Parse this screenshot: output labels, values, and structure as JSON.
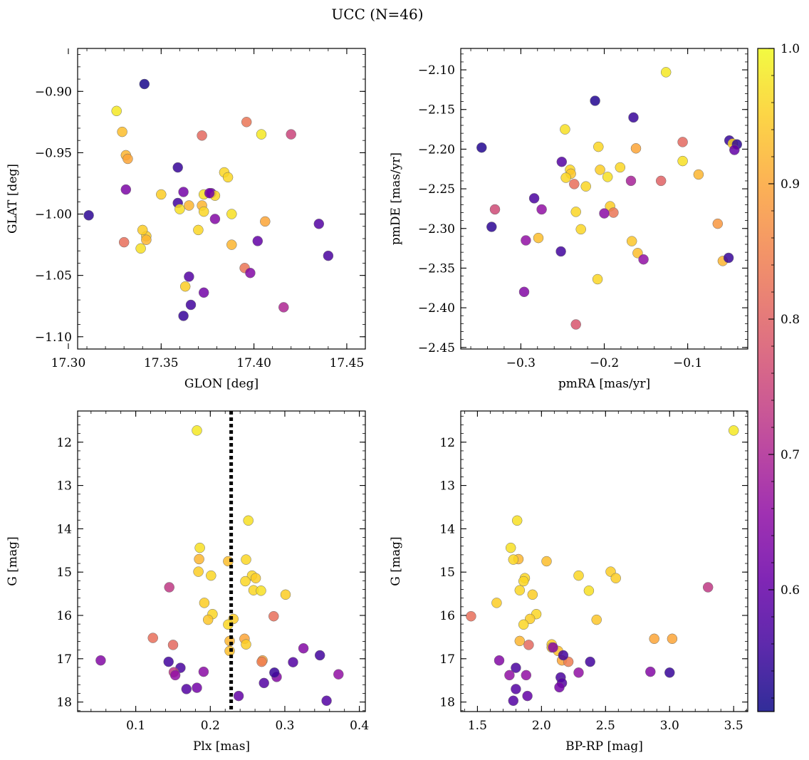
{
  "figure": {
    "title": "UCC (N=46)"
  },
  "colorbar": {
    "range": [
      0.51,
      1.0
    ],
    "ticks": [
      0.6,
      0.7,
      0.8,
      0.9,
      1.0
    ],
    "tick_labels": [
      "0.6",
      "0.7",
      "0.8",
      "0.9",
      "1.0"
    ],
    "colormap": "plasma"
  },
  "chart_data": [
    {
      "type": "scatter",
      "xlabel": "GLON [deg]",
      "ylabel": "GLAT [deg]",
      "xlim": [
        17.305,
        17.46
      ],
      "ylim": [
        -1.11,
        -0.865
      ],
      "xticks": [
        17.3,
        17.35,
        17.4,
        17.45
      ],
      "xtick_labels": [
        "17.30",
        "17.35",
        "17.40",
        "17.45"
      ],
      "yticks": [
        -0.9,
        -0.95,
        -1.0,
        -1.05,
        -1.1
      ],
      "ytick_labels": [
        "−0.90",
        "−0.95",
        "−1.00",
        "−1.05",
        "−1.10"
      ],
      "points": [
        [
          17.341,
          -0.894,
          0.52
        ],
        [
          17.326,
          -0.916,
          0.98
        ],
        [
          17.329,
          -0.933,
          0.93
        ],
        [
          17.331,
          -0.952,
          0.92
        ],
        [
          17.332,
          -0.955,
          0.9
        ],
        [
          17.331,
          -0.98,
          0.63
        ],
        [
          17.311,
          -1.001,
          0.54
        ],
        [
          17.33,
          -1.023,
          0.82
        ],
        [
          17.339,
          -1.028,
          0.97
        ],
        [
          17.342,
          -1.018,
          0.95
        ],
        [
          17.342,
          -1.021,
          0.92
        ],
        [
          17.34,
          -1.013,
          0.95
        ],
        [
          17.35,
          -0.984,
          0.95
        ],
        [
          17.359,
          -0.962,
          0.55
        ],
        [
          17.359,
          -0.991,
          0.56
        ],
        [
          17.36,
          -0.996,
          0.97
        ],
        [
          17.362,
          -0.982,
          0.62
        ],
        [
          17.365,
          -0.993,
          0.92
        ],
        [
          17.363,
          -1.059,
          0.95
        ],
        [
          17.365,
          -1.051,
          0.58
        ],
        [
          17.366,
          -1.074,
          0.56
        ],
        [
          17.362,
          -1.083,
          0.55
        ],
        [
          17.37,
          -1.013,
          0.96
        ],
        [
          17.372,
          -0.993,
          0.92
        ],
        [
          17.373,
          -0.998,
          0.96
        ],
        [
          17.373,
          -0.984,
          0.97
        ],
        [
          17.372,
          -0.936,
          0.81
        ],
        [
          17.373,
          -1.064,
          0.62
        ],
        [
          17.377,
          -0.983,
          0.62
        ],
        [
          17.379,
          -0.985,
          0.96
        ],
        [
          17.379,
          -1.004,
          0.64
        ],
        [
          17.384,
          -0.966,
          0.96
        ],
        [
          17.386,
          -0.97,
          0.96
        ],
        [
          17.388,
          -1.0,
          0.97
        ],
        [
          17.388,
          -1.025,
          0.92
        ],
        [
          17.395,
          -1.044,
          0.83
        ],
        [
          17.396,
          -0.925,
          0.83
        ],
        [
          17.398,
          -1.048,
          0.64
        ],
        [
          17.402,
          -1.022,
          0.6
        ],
        [
          17.404,
          -0.935,
          0.98
        ],
        [
          17.406,
          -1.006,
          0.9
        ],
        [
          17.416,
          -1.076,
          0.7
        ],
        [
          17.42,
          -0.935,
          0.75
        ],
        [
          17.435,
          -1.008,
          0.58
        ],
        [
          17.44,
          -1.034,
          0.57
        ],
        [
          17.376,
          -0.983,
          0.62
        ]
      ]
    },
    {
      "type": "scatter",
      "xlabel": "pmRA [mas/yr]",
      "ylabel": "pmDE [mas/yr]",
      "xlim": [
        -0.372,
        -0.028
      ],
      "ylim": [
        -2.452,
        -2.073
      ],
      "xticks": [
        -0.3,
        -0.2,
        -0.1
      ],
      "xtick_labels": [
        "−0.3",
        "−0.2",
        "−0.1"
      ],
      "yticks": [
        -2.1,
        -2.15,
        -2.2,
        -2.25,
        -2.3,
        -2.35,
        -2.4,
        -2.45
      ],
      "ytick_labels": [
        "−2.10",
        "−2.15",
        "−2.20",
        "−2.25",
        "−2.30",
        "−2.35",
        "−2.40",
        "−2.45"
      ],
      "points": [
        [
          -0.126,
          -2.103,
          0.98
        ],
        [
          -0.211,
          -2.139,
          0.53
        ],
        [
          -0.165,
          -2.16,
          0.55
        ],
        [
          -0.247,
          -2.175,
          0.97
        ],
        [
          -0.347,
          -2.198,
          0.53
        ],
        [
          -0.207,
          -2.197,
          0.96
        ],
        [
          -0.162,
          -2.199,
          0.9
        ],
        [
          -0.106,
          -2.191,
          0.81
        ],
        [
          -0.05,
          -2.189,
          0.55
        ],
        [
          -0.046,
          -2.193,
          0.96
        ],
        [
          -0.041,
          -2.194,
          0.54
        ],
        [
          -0.044,
          -2.201,
          0.6
        ],
        [
          -0.251,
          -2.216,
          0.58
        ],
        [
          -0.241,
          -2.226,
          0.96
        ],
        [
          -0.24,
          -2.231,
          0.94
        ],
        [
          -0.246,
          -2.236,
          0.96
        ],
        [
          -0.205,
          -2.226,
          0.95
        ],
        [
          -0.196,
          -2.235,
          0.97
        ],
        [
          -0.181,
          -2.223,
          0.96
        ],
        [
          -0.106,
          -2.215,
          0.97
        ],
        [
          -0.087,
          -2.232,
          0.92
        ],
        [
          -0.236,
          -2.244,
          0.82
        ],
        [
          -0.222,
          -2.247,
          0.96
        ],
        [
          -0.168,
          -2.24,
          0.69
        ],
        [
          -0.132,
          -2.24,
          0.8
        ],
        [
          -0.284,
          -2.262,
          0.57
        ],
        [
          -0.331,
          -2.276,
          0.76
        ],
        [
          -0.275,
          -2.276,
          0.66
        ],
        [
          -0.234,
          -2.279,
          0.96
        ],
        [
          -0.193,
          -2.272,
          0.95
        ],
        [
          -0.189,
          -2.28,
          0.83
        ],
        [
          -0.2,
          -2.281,
          0.65
        ],
        [
          -0.228,
          -2.301,
          0.96
        ],
        [
          -0.335,
          -2.298,
          0.54
        ],
        [
          -0.294,
          -2.315,
          0.66
        ],
        [
          -0.279,
          -2.312,
          0.93
        ],
        [
          -0.167,
          -2.316,
          0.94
        ],
        [
          -0.064,
          -2.294,
          0.88
        ],
        [
          -0.252,
          -2.329,
          0.56
        ],
        [
          -0.16,
          -2.331,
          0.93
        ],
        [
          -0.153,
          -2.339,
          0.66
        ],
        [
          -0.058,
          -2.341,
          0.92
        ],
        [
          -0.051,
          -2.337,
          0.55
        ],
        [
          -0.208,
          -2.364,
          0.96
        ],
        [
          -0.296,
          -2.38,
          0.64
        ],
        [
          -0.234,
          -2.421,
          0.78
        ]
      ]
    },
    {
      "type": "scatter",
      "xlabel": "Plx [mas]",
      "ylabel": "G [mag]",
      "xlim": [
        0.022,
        0.408
      ],
      "ylim": [
        18.22,
        11.28
      ],
      "xticks": [
        0.1,
        0.2,
        0.3,
        0.4
      ],
      "xtick_labels": [
        "0.1",
        "0.2",
        "0.3",
        "0.4"
      ],
      "yticks": [
        12,
        13,
        14,
        15,
        16,
        17,
        18
      ],
      "ytick_labels": [
        "12",
        "13",
        "14",
        "15",
        "16",
        "17",
        "18"
      ],
      "vline": 0.228,
      "points": [
        [
          0.182,
          11.73,
          0.98
        ],
        [
          0.251,
          13.81,
          0.97
        ],
        [
          0.186,
          14.44,
          0.97
        ],
        [
          0.185,
          14.7,
          0.92
        ],
        [
          0.184,
          14.99,
          0.95
        ],
        [
          0.224,
          14.75,
          0.93
        ],
        [
          0.248,
          14.71,
          0.96
        ],
        [
          0.256,
          15.08,
          0.96
        ],
        [
          0.261,
          15.14,
          0.95
        ],
        [
          0.201,
          15.08,
          0.96
        ],
        [
          0.247,
          15.21,
          0.96
        ],
        [
          0.258,
          15.42,
          0.96
        ],
        [
          0.268,
          15.43,
          0.97
        ],
        [
          0.301,
          15.52,
          0.95
        ],
        [
          0.145,
          15.35,
          0.73
        ],
        [
          0.192,
          15.71,
          0.95
        ],
        [
          0.203,
          15.97,
          0.96
        ],
        [
          0.197,
          16.1,
          0.94
        ],
        [
          0.231,
          16.08,
          0.95
        ],
        [
          0.224,
          16.21,
          0.96
        ],
        [
          0.285,
          16.02,
          0.82
        ],
        [
          0.123,
          16.52,
          0.82
        ],
        [
          0.15,
          16.68,
          0.81
        ],
        [
          0.226,
          16.59,
          0.92
        ],
        [
          0.226,
          16.82,
          0.93
        ],
        [
          0.246,
          16.54,
          0.9
        ],
        [
          0.248,
          16.67,
          0.95
        ],
        [
          0.27,
          17.04,
          0.9
        ],
        [
          0.269,
          17.07,
          0.84
        ],
        [
          0.053,
          17.04,
          0.64
        ],
        [
          0.144,
          17.07,
          0.56
        ],
        [
          0.16,
          17.21,
          0.57
        ],
        [
          0.151,
          17.31,
          0.73
        ],
        [
          0.153,
          17.38,
          0.66
        ],
        [
          0.191,
          17.3,
          0.65
        ],
        [
          0.168,
          17.7,
          0.58
        ],
        [
          0.182,
          17.67,
          0.62
        ],
        [
          0.238,
          17.86,
          0.6
        ],
        [
          0.272,
          17.56,
          0.58
        ],
        [
          0.289,
          17.42,
          0.64
        ],
        [
          0.286,
          17.32,
          0.55
        ],
        [
          0.311,
          17.08,
          0.58
        ],
        [
          0.325,
          16.76,
          0.64
        ],
        [
          0.347,
          16.92,
          0.56
        ],
        [
          0.356,
          17.97,
          0.58
        ],
        [
          0.372,
          17.36,
          0.66
        ]
      ]
    },
    {
      "type": "scatter",
      "xlabel": "BP-RP [mag]",
      "ylabel": "G [mag]",
      "xlim": [
        1.37,
        3.61
      ],
      "ylim": [
        18.22,
        11.28
      ],
      "xticks": [
        1.5,
        2.0,
        2.5,
        3.0,
        3.5
      ],
      "xtick_labels": [
        "1.5",
        "2.0",
        "2.5",
        "3.0",
        "3.5"
      ],
      "yticks": [
        12,
        13,
        14,
        15,
        16,
        17,
        18
      ],
      "ytick_labels": [
        "12",
        "13",
        "14",
        "15",
        "16",
        "17",
        "18"
      ],
      "points": [
        [
          3.5,
          11.73,
          0.98
        ],
        [
          1.81,
          13.81,
          0.97
        ],
        [
          1.76,
          14.44,
          0.97
        ],
        [
          1.82,
          14.7,
          0.92
        ],
        [
          1.78,
          14.71,
          0.96
        ],
        [
          2.04,
          14.75,
          0.93
        ],
        [
          2.54,
          14.99,
          0.95
        ],
        [
          2.29,
          15.08,
          0.96
        ],
        [
          2.58,
          15.14,
          0.95
        ],
        [
          1.87,
          15.14,
          0.96
        ],
        [
          1.86,
          15.21,
          0.96
        ],
        [
          1.83,
          15.42,
          0.96
        ],
        [
          2.37,
          15.43,
          0.97
        ],
        [
          1.93,
          15.52,
          0.95
        ],
        [
          3.3,
          15.35,
          0.73
        ],
        [
          1.65,
          15.71,
          0.95
        ],
        [
          1.96,
          15.97,
          0.96
        ],
        [
          1.91,
          16.08,
          0.95
        ],
        [
          2.43,
          16.1,
          0.94
        ],
        [
          1.86,
          16.21,
          0.96
        ],
        [
          1.45,
          16.02,
          0.82
        ],
        [
          1.83,
          16.59,
          0.92
        ],
        [
          1.9,
          16.68,
          0.81
        ],
        [
          2.08,
          16.67,
          0.95
        ],
        [
          2.08,
          16.74,
          0.93
        ],
        [
          2.13,
          16.82,
          0.93
        ],
        [
          2.88,
          16.54,
          0.9
        ],
        [
          3.02,
          16.54,
          0.9
        ],
        [
          2.16,
          17.04,
          0.9
        ],
        [
          2.21,
          17.07,
          0.84
        ],
        [
          1.67,
          17.04,
          0.64
        ],
        [
          2.38,
          17.07,
          0.56
        ],
        [
          1.8,
          17.21,
          0.57
        ],
        [
          1.75,
          17.38,
          0.66
        ],
        [
          1.88,
          17.38,
          0.66
        ],
        [
          2.29,
          17.32,
          0.66
        ],
        [
          2.85,
          17.3,
          0.64
        ],
        [
          3.0,
          17.32,
          0.55
        ],
        [
          2.09,
          16.74,
          0.64
        ],
        [
          2.17,
          16.92,
          0.56
        ],
        [
          2.15,
          17.43,
          0.57
        ],
        [
          2.16,
          17.56,
          0.58
        ],
        [
          2.14,
          17.66,
          0.62
        ],
        [
          1.8,
          17.7,
          0.58
        ],
        [
          1.89,
          17.86,
          0.6
        ],
        [
          1.78,
          17.97,
          0.58
        ]
      ]
    }
  ]
}
